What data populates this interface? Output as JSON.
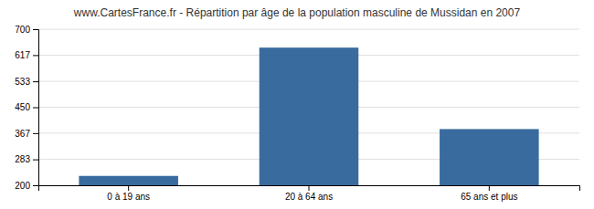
{
  "chart_data": {
    "type": "bar",
    "title": "www.CartesFrance.fr - Répartition par âge de la population masculine de Mussidan en 2007",
    "categories": [
      "0 à 19 ans",
      "20 à 64 ans",
      "65 ans et plus"
    ],
    "values": [
      230,
      641,
      380
    ],
    "color": "#3a6b9e",
    "ylim": [
      200,
      700
    ],
    "yticks": [
      200,
      283,
      367,
      450,
      533,
      617,
      700
    ],
    "grid": true
  }
}
